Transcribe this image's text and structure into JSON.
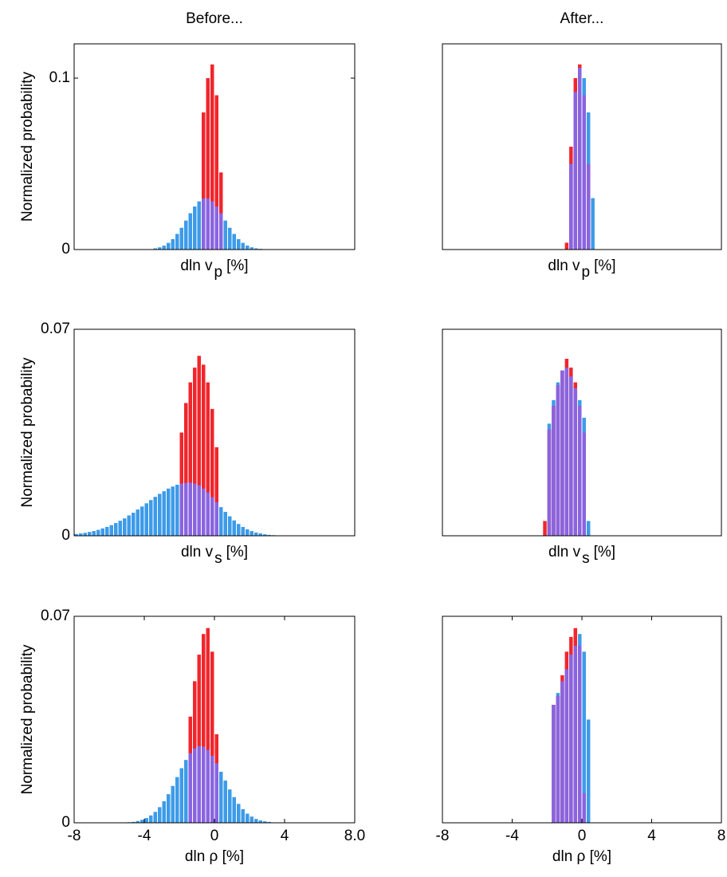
{
  "chart_data": [
    {
      "type": "histogram",
      "title": "Before...",
      "ylabel": "Normalized probability",
      "xlabel": {
        "text": "dln v",
        "sub": "p",
        "after": "[%]"
      },
      "xlim": [
        -8,
        8
      ],
      "ylim": [
        0,
        0.12
      ],
      "yticks": [
        0,
        0.1
      ],
      "overlap_color": "#8a64e0",
      "bins": [
        -3.5,
        -3.25,
        -3,
        -2.75,
        -2.5,
        -2.25,
        -2,
        -1.75,
        -1.5,
        -1.25,
        -1,
        -0.75,
        -0.5,
        -0.25,
        0,
        0.25,
        0.5,
        0.75,
        1,
        1.25,
        1.5,
        1.75,
        2,
        2.25,
        2.5,
        2.75,
        3,
        3.25
      ],
      "series": [
        {
          "color": "#3d9be9",
          "values": [
            0.0007,
            0.0013,
            0.0023,
            0.0039,
            0.0061,
            0.0091,
            0.0127,
            0.0169,
            0.0212,
            0.0251,
            0.0281,
            0.0298,
            0.0298,
            0.0281,
            0.0251,
            0.0212,
            0.0169,
            0.0127,
            0.0091,
            0.0061,
            0.0039,
            0.0023,
            0.0013,
            0.0007,
            0.0004,
            0.0002,
            0.0001
          ]
        },
        {
          "color": "#f0262c",
          "values": [
            0,
            0,
            0,
            0,
            0,
            0,
            0,
            0,
            0,
            0,
            0,
            0.08,
            0.1,
            0.108,
            0.09,
            0.045,
            0,
            0,
            0,
            0,
            0,
            0,
            0,
            0,
            0,
            0,
            0
          ]
        }
      ]
    },
    {
      "type": "histogram",
      "title": "After...",
      "xlabel": {
        "text": "dln v",
        "sub": "p",
        "after": "[%]"
      },
      "xlim": [
        -8,
        8
      ],
      "ylim": [
        0,
        0.12
      ],
      "overlap_color": "#8a64e0",
      "bins": [
        -1,
        -0.75,
        -0.5,
        -0.25,
        0,
        0.25,
        0.5,
        0.75
      ],
      "series": [
        {
          "color": "#3d9be9",
          "values": [
            0,
            0.05,
            0.092,
            0.106,
            0.1,
            0.08,
            0.03
          ]
        },
        {
          "color": "#f0262c",
          "values": [
            0.004,
            0.06,
            0.1,
            0.108,
            0.09,
            0.05,
            0
          ]
        }
      ]
    },
    {
      "type": "histogram",
      "ylabel": "Normalized probability",
      "xlabel": {
        "text": "dln v",
        "sub": "s",
        "after": "[%]"
      },
      "xlim": [
        -8,
        8
      ],
      "ylim": [
        0,
        0.07
      ],
      "yticks": [
        0,
        0.07
      ],
      "overlap_color": "#8a64e0",
      "bins": [
        -8,
        -7.75,
        -7.5,
        -7.25,
        -7,
        -6.75,
        -6.5,
        -6.25,
        -6,
        -5.75,
        -5.5,
        -5.25,
        -5,
        -4.75,
        -4.5,
        -4.25,
        -4,
        -3.75,
        -3.5,
        -3.25,
        -3,
        -2.75,
        -2.5,
        -2.25,
        -2,
        -1.75,
        -1.5,
        -1.25,
        -1,
        -0.75,
        -0.5,
        -0.25,
        0,
        0.25,
        0.5,
        0.75,
        1,
        1.25,
        1.5,
        1.75,
        2,
        2.25,
        2.5,
        2.75,
        3,
        3.25,
        3.5,
        3.75,
        4
      ],
      "series": [
        {
          "color": "#3d9be9",
          "values": [
            0.0006,
            0.0008,
            0.001,
            0.0013,
            0.0016,
            0.002,
            0.0025,
            0.003,
            0.0036,
            0.0043,
            0.0051,
            0.0059,
            0.0069,
            0.0078,
            0.0089,
            0.0099,
            0.011,
            0.0121,
            0.0132,
            0.0142,
            0.0151,
            0.016,
            0.0167,
            0.0173,
            0.0177,
            0.0179,
            0.018,
            0.0177,
            0.0171,
            0.016,
            0.0147,
            0.0131,
            0.0114,
            0.0097,
            0.0081,
            0.0066,
            0.0052,
            0.004,
            0.003,
            0.0022,
            0.0016,
            0.0011,
            0.0008,
            0.0005,
            0.0003,
            0.0002,
            0.0001,
            0.0001
          ]
        },
        {
          "color": "#f0262c",
          "values": [
            0,
            0,
            0,
            0,
            0,
            0,
            0,
            0,
            0,
            0,
            0,
            0,
            0,
            0,
            0,
            0,
            0,
            0,
            0,
            0,
            0,
            0,
            0,
            0,
            0.035,
            0.045,
            0.052,
            0.057,
            0.061,
            0.058,
            0.052,
            0.043,
            0.03,
            0,
            0,
            0,
            0,
            0,
            0,
            0,
            0,
            0,
            0,
            0,
            0,
            0,
            0,
            0
          ]
        }
      ]
    },
    {
      "type": "histogram",
      "xlabel": {
        "text": "dln v",
        "sub": "s",
        "after": "[%]"
      },
      "xlim": [
        -8,
        8
      ],
      "ylim": [
        0,
        0.07
      ],
      "overlap_color": "#8a64e0",
      "bins": [
        -2.25,
        -2,
        -1.75,
        -1.5,
        -1.25,
        -1,
        -0.75,
        -0.5,
        -0.25,
        0,
        0.25,
        0.5
      ],
      "series": [
        {
          "color": "#3d9be9",
          "values": [
            0,
            0.038,
            0.046,
            0.052,
            0.056,
            0.057,
            0.054,
            0.05,
            0.046,
            0.04,
            0.005
          ]
        },
        {
          "color": "#f0262c",
          "values": [
            0.005,
            0.036,
            0.044,
            0.051,
            0.056,
            0.06,
            0.057,
            0.052,
            0.044,
            0.035,
            0
          ]
        }
      ]
    },
    {
      "type": "histogram",
      "ylabel": "Normalized probability",
      "xlabel": {
        "text": "dln ρ [%]"
      },
      "xlim": [
        -8,
        8
      ],
      "ylim": [
        0,
        0.07
      ],
      "yticks": [
        0,
        0.07
      ],
      "xticks": [
        -8,
        -4,
        0,
        4,
        {
          "value": 8,
          "label": "8.0"
        }
      ],
      "overlap_color": "#8a64e0",
      "bins": [
        -5,
        -4.75,
        -4.5,
        -4.25,
        -4,
        -3.75,
        -3.5,
        -3.25,
        -3,
        -2.75,
        -2.5,
        -2.25,
        -2,
        -1.75,
        -1.5,
        -1.25,
        -1,
        -0.75,
        -0.5,
        -0.25,
        0,
        0.25,
        0.5,
        0.75,
        1,
        1.25,
        1.5,
        1.75,
        2,
        2.25,
        2.5,
        2.75,
        3,
        3.25
      ],
      "series": [
        {
          "color": "#3d9be9",
          "values": [
            0.0002,
            0.0003,
            0.0006,
            0.001,
            0.0016,
            0.0025,
            0.0037,
            0.0053,
            0.0073,
            0.0097,
            0.0125,
            0.0155,
            0.0185,
            0.0213,
            0.0236,
            0.0252,
            0.026,
            0.0258,
            0.0247,
            0.0227,
            0.0202,
            0.0173,
            0.0143,
            0.0113,
            0.0087,
            0.0064,
            0.0046,
            0.0031,
            0.0021,
            0.0013,
            0.0008,
            0.0005,
            0.0003
          ]
        },
        {
          "color": "#f0262c",
          "values": [
            0,
            0,
            0,
            0,
            0,
            0,
            0,
            0,
            0,
            0,
            0,
            0,
            0,
            0,
            0.036,
            0.048,
            0.057,
            0.064,
            0.066,
            0.058,
            0.03,
            0,
            0,
            0,
            0,
            0,
            0,
            0,
            0,
            0,
            0,
            0,
            0
          ]
        }
      ]
    },
    {
      "type": "histogram",
      "xlabel": {
        "text": "dln ρ [%]"
      },
      "xlim": [
        -8,
        8
      ],
      "ylim": [
        0,
        0.07
      ],
      "xticks": [
        -8,
        -4,
        0,
        4,
        8
      ],
      "overlap_color": "#8a64e0",
      "bins": [
        -1.75,
        -1.5,
        -1.25,
        -1,
        -0.75,
        -0.5,
        -0.25,
        0,
        0.25,
        0.5
      ],
      "series": [
        {
          "color": "#3d9be9",
          "values": [
            0.04,
            0.044,
            0.048,
            0.052,
            0.057,
            0.06,
            0.064,
            0.058,
            0.035
          ]
        },
        {
          "color": "#f0262c",
          "values": [
            0.04,
            0.043,
            0.05,
            0.058,
            0.063,
            0.066,
            0.06,
            0.01,
            0
          ]
        }
      ]
    }
  ]
}
